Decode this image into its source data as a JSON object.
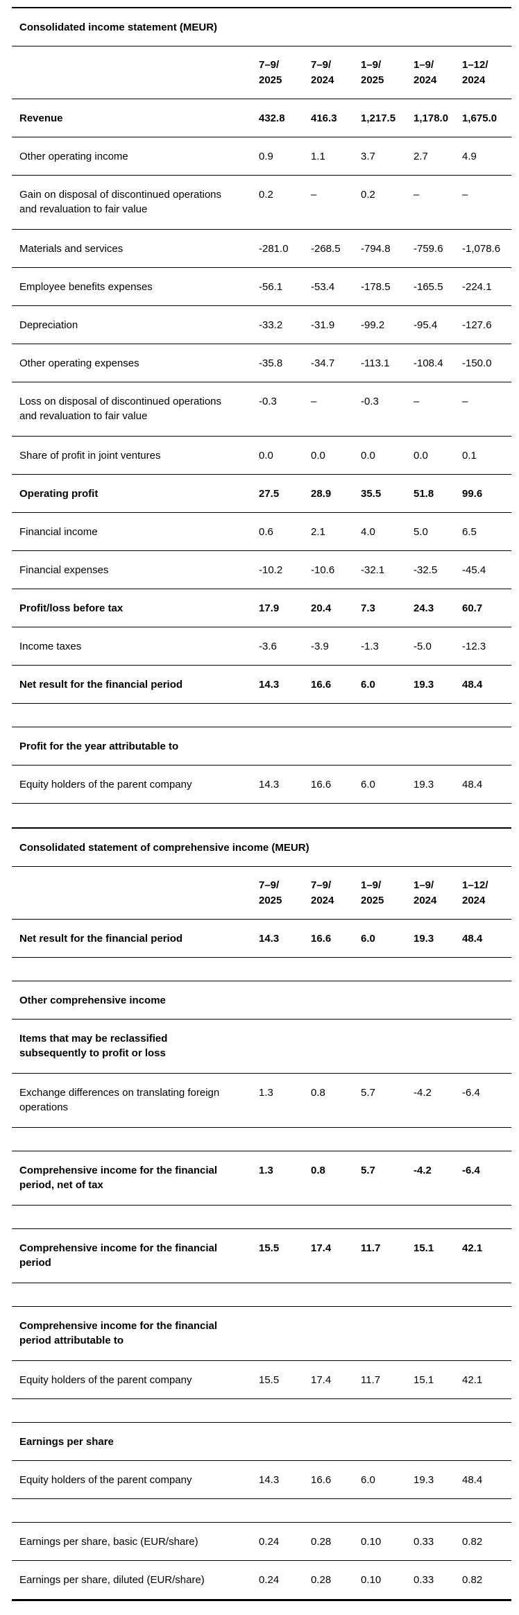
{
  "tables": [
    {
      "title": "Consolidated income statement (MEUR)",
      "columns": [
        {
          "period": "7–9/",
          "year": "2025"
        },
        {
          "period": "7–9/",
          "year": "2024"
        },
        {
          "period": "1–9/",
          "year": "2025"
        },
        {
          "period": "1–9/",
          "year": "2024"
        },
        {
          "period": "1–12/",
          "year": "2024"
        }
      ],
      "rows": [
        {
          "label": "Revenue",
          "bold": true,
          "values": [
            "432.8",
            "416.3",
            "1,217.5",
            "1,178.0",
            "1,675.0"
          ]
        },
        {
          "label": "Other operating income",
          "values": [
            "0.9",
            "1.1",
            "3.7",
            "2.7",
            "4.9"
          ]
        },
        {
          "label": "Gain on disposal of discontinued operations\nand revaluation to fair value",
          "tall": true,
          "values": [
            "0.2",
            "–",
            "0.2",
            "–",
            "–"
          ]
        },
        {
          "label": "Materials and services",
          "values": [
            "-281.0",
            "-268.5",
            "-794.8",
            "-759.6",
            "-1,078.6"
          ]
        },
        {
          "label": "Employee benefits expenses",
          "values": [
            "-56.1",
            "-53.4",
            "-178.5",
            "-165.5",
            "-224.1"
          ]
        },
        {
          "label": "Depreciation",
          "values": [
            "-33.2",
            "-31.9",
            "-99.2",
            "-95.4",
            "-127.6"
          ]
        },
        {
          "label": "Other operating expenses",
          "values": [
            "-35.8",
            "-34.7",
            "-113.1",
            "-108.4",
            "-150.0"
          ]
        },
        {
          "label": "Loss on disposal of discontinued operations\nand revaluation to fair value",
          "tall": true,
          "values": [
            "-0.3",
            "–",
            "-0.3",
            "–",
            "–"
          ]
        },
        {
          "label": "Share of profit in joint ventures",
          "values": [
            "0.0",
            "0.0",
            "0.0",
            "0.0",
            "0.1"
          ]
        },
        {
          "label": "Operating profit",
          "bold": true,
          "values": [
            "27.5",
            "28.9",
            "35.5",
            "51.8",
            "99.6"
          ]
        },
        {
          "label": "Financial income",
          "values": [
            "0.6",
            "2.1",
            "4.0",
            "5.0",
            "6.5"
          ]
        },
        {
          "label": "Financial expenses",
          "values": [
            "-10.2",
            "-10.6",
            "-32.1",
            "-32.5",
            "-45.4"
          ]
        },
        {
          "label": "Profit/loss before tax",
          "bold": true,
          "values": [
            "17.9",
            "20.4",
            "7.3",
            "24.3",
            "60.7"
          ]
        },
        {
          "label": "Income taxes",
          "values": [
            "-3.6",
            "-3.9",
            "-1.3",
            "-5.0",
            "-12.3"
          ]
        },
        {
          "label": "Net result for the financial period",
          "bold": true,
          "values": [
            "14.3",
            "16.6",
            "6.0",
            "19.3",
            "48.4"
          ]
        },
        {
          "type": "spacer"
        },
        {
          "label": "Profit for the year attributable to",
          "bold": true,
          "values": []
        },
        {
          "label": "Equity holders of the parent company",
          "values": [
            "14.3",
            "16.6",
            "6.0",
            "19.3",
            "48.4"
          ]
        }
      ]
    },
    {
      "title": "Consolidated statement of comprehensive income (MEUR)",
      "columns": [
        {
          "period": "7–9/",
          "year": "2025"
        },
        {
          "period": "7–9/",
          "year": "2024"
        },
        {
          "period": "1–9/",
          "year": "2025"
        },
        {
          "period": "1–9/",
          "year": "2024"
        },
        {
          "period": "1–12/",
          "year": "2024"
        }
      ],
      "rows": [
        {
          "label": "Net result for the financial period",
          "bold": true,
          "values": [
            "14.3",
            "16.6",
            "6.0",
            "19.3",
            "48.4"
          ]
        },
        {
          "type": "spacer"
        },
        {
          "label": "Other comprehensive income",
          "bold": true,
          "values": []
        },
        {
          "label": "Items that may be reclassified\nsubsequently to profit or loss",
          "bold": true,
          "tall": true,
          "values": []
        },
        {
          "label": "Exchange differences on translating foreign\noperations",
          "tall": true,
          "values": [
            "1.3",
            "0.8",
            "5.7",
            "-4.2",
            "-6.4"
          ]
        },
        {
          "type": "spacer"
        },
        {
          "label": "Comprehensive income for the financial\nperiod, net of tax",
          "bold": true,
          "tall": true,
          "values": [
            "1.3",
            "0.8",
            "5.7",
            "-4.2",
            "-6.4"
          ]
        },
        {
          "type": "spacer"
        },
        {
          "label": "Comprehensive income for the financial\nperiod",
          "bold": true,
          "tall": true,
          "values": [
            "15.5",
            "17.4",
            "11.7",
            "15.1",
            "42.1"
          ]
        },
        {
          "type": "spacer"
        },
        {
          "label": "Comprehensive income for the financial\nperiod attributable to",
          "bold": true,
          "tall": true,
          "values": []
        },
        {
          "label": "Equity holders of the parent company",
          "values": [
            "15.5",
            "17.4",
            "11.7",
            "15.1",
            "42.1"
          ]
        },
        {
          "type": "spacer"
        },
        {
          "label": "Earnings per share",
          "bold": true,
          "values": []
        },
        {
          "label": "Equity holders of the parent company",
          "values": [
            "14.3",
            "16.6",
            "6.0",
            "19.3",
            "48.4"
          ]
        },
        {
          "type": "spacer"
        },
        {
          "label": "Earnings per share, basic (EUR/share)",
          "values": [
            "0.24",
            "0.28",
            "0.10",
            "0.33",
            "0.82"
          ]
        },
        {
          "label": "Earnings per share, diluted (EUR/share)",
          "values": [
            "0.24",
            "0.28",
            "0.10",
            "0.33",
            "0.82"
          ]
        }
      ]
    }
  ]
}
